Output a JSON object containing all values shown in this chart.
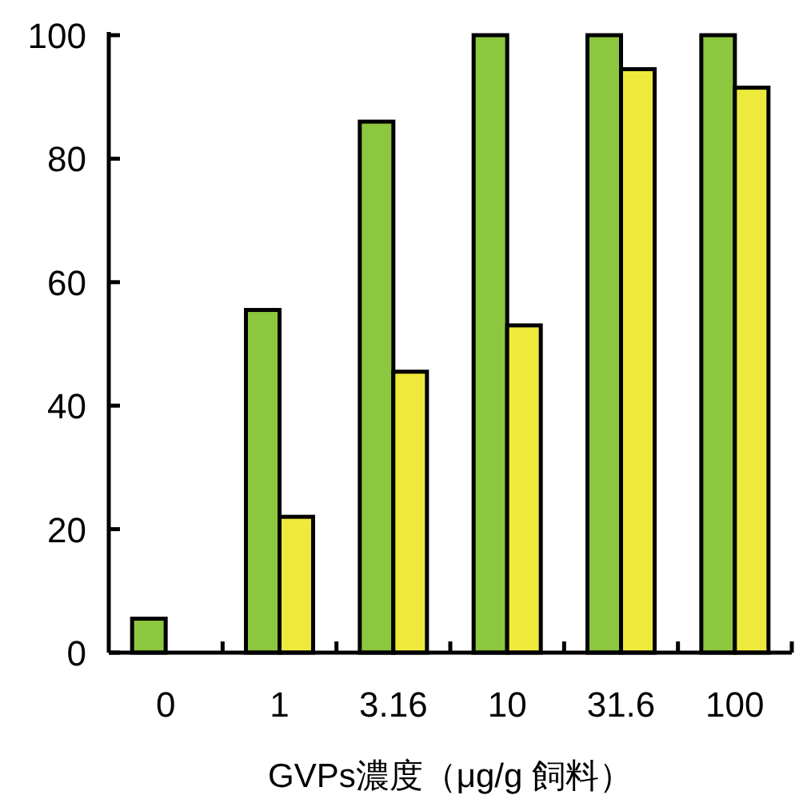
{
  "chart_data": {
    "type": "bar",
    "xlabel": "GVPs濃度（μg/g 飼料）",
    "categories": [
      "0",
      "1",
      "3.16",
      "10",
      "31.6",
      "100"
    ],
    "series": [
      {
        "color": "#8dc63f",
        "values": [
          5.5,
          55.5,
          86,
          100,
          100,
          100
        ]
      },
      {
        "color": "#eeea3c",
        "values": [
          0,
          22,
          45.5,
          53,
          94.5,
          91.5
        ]
      }
    ],
    "ylim": [
      0,
      100
    ],
    "yticks": [
      0,
      20,
      40,
      60,
      80,
      100
    ]
  }
}
